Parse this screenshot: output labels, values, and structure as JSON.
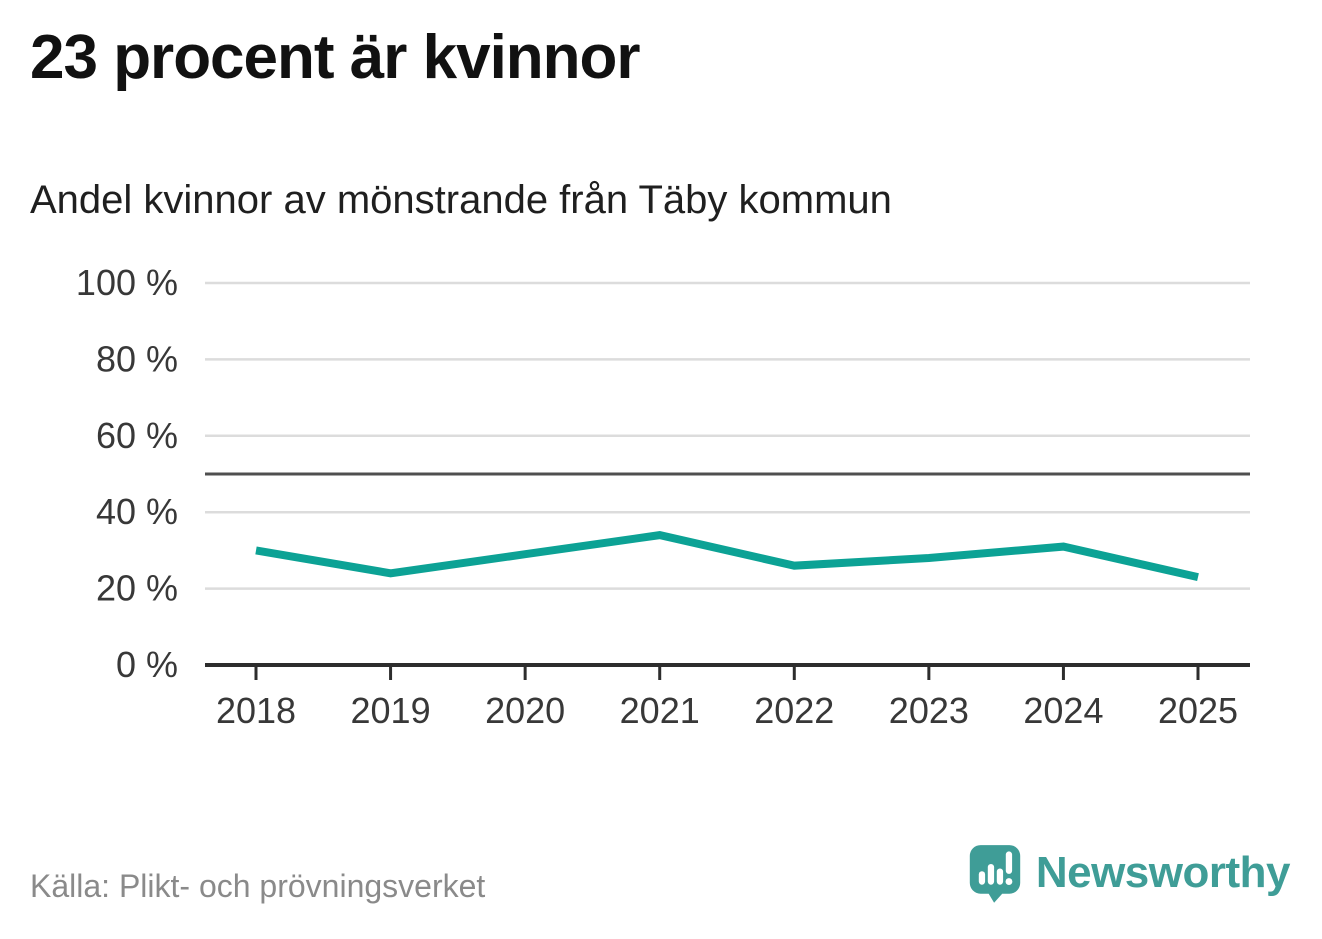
{
  "title": "23 procent är kvinnor",
  "subtitle": "Andel kvinnor av mönstrande från Täby kommun",
  "source": "Källa: Plikt- och prövningsverket",
  "branding": {
    "name": "Newsworthy",
    "logo_icon": "newsworthy-speech-bubble-barchart-icon"
  },
  "colors": {
    "line": "#0ca295",
    "grid": "#dcdcdc",
    "axis": "#2d2d2d",
    "reference_line": "#4f4f4f",
    "tick_label": "#383838",
    "title_text": "#111111",
    "source_text": "#8a8a8a",
    "brand_teal": "#3f9d97"
  },
  "chart_data": {
    "type": "line",
    "title": "23 procent är kvinnor",
    "subtitle": "Andel kvinnor av mönstrande från Täby kommun",
    "categories": [
      "2018",
      "2019",
      "2020",
      "2021",
      "2022",
      "2023",
      "2024",
      "2025"
    ],
    "series": [
      {
        "name": "Andel kvinnor av mönstrande",
        "values": [
          30,
          24,
          29,
          34,
          26,
          28,
          31,
          23
        ]
      }
    ],
    "unit": "%",
    "xlabel": "",
    "ylabel": "",
    "ylim": [
      0,
      100
    ],
    "y_tick_values": [
      100,
      80,
      60,
      40,
      20,
      0
    ],
    "y_tick_labels": [
      "100 %",
      "80 %",
      "60 %",
      "40 %",
      "20 %",
      "0 %"
    ],
    "reference_line": 50,
    "grid": "horizontal",
    "legend": "none"
  }
}
